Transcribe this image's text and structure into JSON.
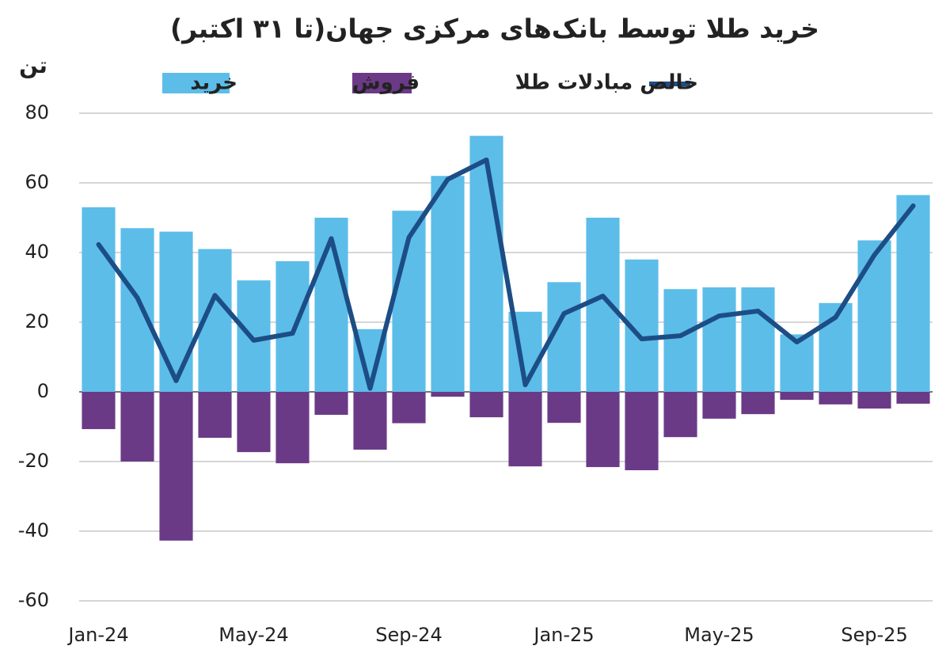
{
  "chart_data": {
    "type": "bar",
    "title": "خرید طلا توسط بانک‌های مرکزی جهان(تا ۳۱ اکتبر)",
    "y_label": "تن",
    "categories": [
      "Jan-24",
      null,
      null,
      null,
      "May-24",
      null,
      null,
      null,
      "Sep-24",
      null,
      null,
      null,
      "Jan-25",
      null,
      null,
      null,
      "May-25",
      null,
      null,
      null,
      "Sep-25",
      null
    ],
    "series": [
      {
        "name": "خرید",
        "color": "#5cbde9",
        "values": [
          53,
          47,
          46,
          41,
          32,
          37.5,
          50,
          18,
          52,
          62,
          73.5,
          23,
          31.5,
          50,
          38,
          29.5,
          30,
          30,
          16.5,
          25.5,
          43.5,
          56.5
        ]
      },
      {
        "name": "فروش",
        "color": "#6b3a87",
        "values": [
          -10.7,
          -20,
          -42.7,
          -13.2,
          -17.3,
          -20.5,
          -6.6,
          -16.6,
          -9,
          -1.4,
          -7.3,
          -21.4,
          -8.9,
          -21.6,
          -22.5,
          -13,
          -7.7,
          -6.4,
          -2.3,
          -3.6,
          -4.8,
          -3.4
        ]
      },
      {
        "name": "خالص مبادلات طلا",
        "color": "#1d4d85",
        "type": "line",
        "values": [
          42.3,
          27,
          3.2,
          27.7,
          14.8,
          16.8,
          44,
          1,
          44.3,
          61,
          66.6,
          2,
          22.5,
          27.5,
          15.2,
          16.1,
          21.8,
          23.2,
          14.3,
          21.4,
          39.3,
          53.4
        ]
      }
    ],
    "ylim": [
      -60,
      80
    ],
    "yticks": [
      -60,
      -40,
      -20,
      0,
      20,
      40,
      60,
      80
    ],
    "grid": true
  }
}
